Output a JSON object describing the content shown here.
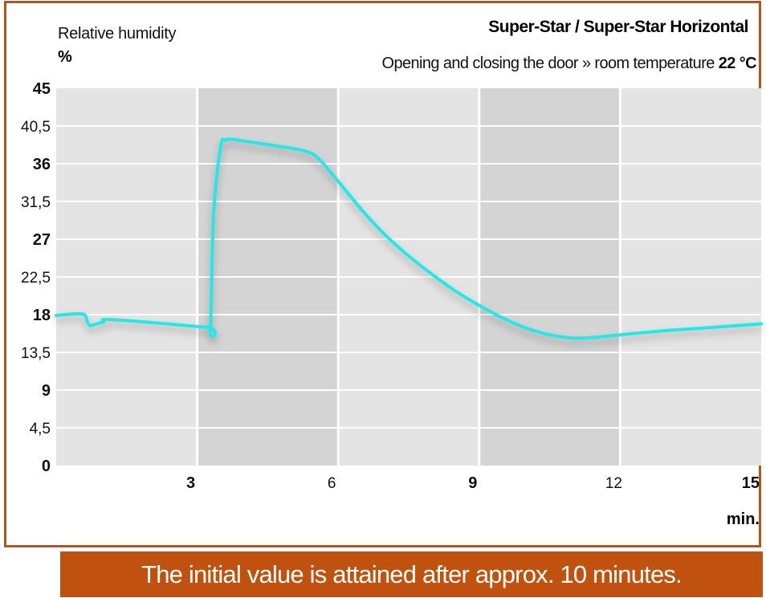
{
  "chart_data": {
    "type": "line",
    "title": "Super-Star / Super-Star Horizontal",
    "subtitle": "Opening and closing the door » room temperature",
    "subtitle_emphasis": "22 °C",
    "ylabel": "Relative humidity",
    "yunit": "%",
    "xunit": "min.",
    "xlim": [
      0,
      15
    ],
    "ylim": [
      0,
      45
    ],
    "xticks": [
      {
        "value": 3,
        "label": "3",
        "bold": true
      },
      {
        "value": 6,
        "label": "6",
        "bold": false
      },
      {
        "value": 9,
        "label": "9",
        "bold": true
      },
      {
        "value": 12,
        "label": "12",
        "bold": false
      },
      {
        "value": 15,
        "label": "15",
        "bold": true
      }
    ],
    "yticks": [
      {
        "value": 0,
        "label": "0",
        "bold": true
      },
      {
        "value": 4.5,
        "label": "4,5",
        "bold": false
      },
      {
        "value": 9,
        "label": "9",
        "bold": true
      },
      {
        "value": 13.5,
        "label": "13,5",
        "bold": false
      },
      {
        "value": 18,
        "label": "18",
        "bold": true
      },
      {
        "value": 22.5,
        "label": "22,5",
        "bold": false
      },
      {
        "value": 27,
        "label": "27",
        "bold": true
      },
      {
        "value": 31.5,
        "label": "31,5",
        "bold": false
      },
      {
        "value": 36,
        "label": "36",
        "bold": true
      },
      {
        "value": 40.5,
        "label": "40,5",
        "bold": false
      },
      {
        "value": 45,
        "label": "45",
        "bold": true
      }
    ],
    "shaded_bands": [
      [
        3,
        6
      ],
      [
        9,
        12
      ]
    ],
    "grid": true,
    "series": [
      {
        "color": "#22e8e8",
        "x": [
          0,
          0.4,
          0.6,
          0.66,
          0.72,
          0.8,
          1.0,
          1.2,
          3.2,
          3.28,
          3.35,
          3.5,
          3.6,
          3.75,
          4.0,
          4.6,
          5.3,
          5.6,
          6.0,
          6.5,
          7.0,
          7.5,
          8.0,
          8.5,
          9.0,
          9.5,
          10.0,
          10.5,
          11.0,
          11.5,
          12.0,
          13.0,
          14.0,
          15.0
        ],
        "y": [
          17.9,
          18.1,
          18.0,
          17.2,
          16.7,
          16.8,
          17.1,
          17.4,
          16.5,
          16.5,
          30.0,
          38.0,
          38.8,
          38.9,
          38.7,
          38.2,
          37.5,
          36.5,
          33.9,
          30.5,
          27.5,
          25.0,
          22.8,
          20.8,
          19.1,
          17.6,
          16.4,
          15.6,
          15.2,
          15.3,
          15.6,
          16.1,
          16.5,
          16.9
        ]
      }
    ]
  },
  "footer": {
    "text": "The initial value is attained after approx. 10 minutes."
  },
  "colors": {
    "accent": "#c0510e",
    "plot_background": "#e4e4e4",
    "shaded_band": "#d4d4d4",
    "gridline": "#ffffff",
    "line": "#22e8e8"
  }
}
